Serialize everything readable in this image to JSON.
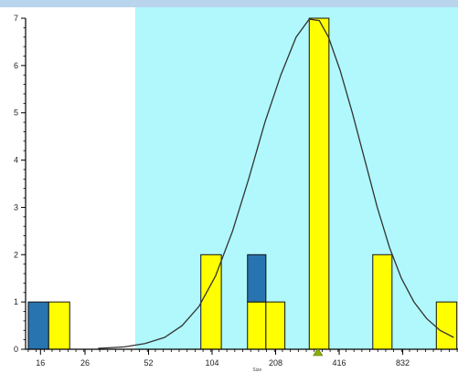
{
  "chart_data": {
    "type": "bar",
    "xlabel": "Size",
    "x_scale": "log2",
    "x_tick_labels": [
      "16",
      "26",
      "52",
      "104",
      "208",
      "416",
      "832"
    ],
    "x_tick_values": [
      16,
      26,
      52,
      104,
      208,
      416,
      832
    ],
    "y_tick_labels": [
      "0",
      "1",
      "2",
      "3",
      "4",
      "5",
      "6",
      "7"
    ],
    "ylim": [
      0,
      7
    ],
    "highlight_range": [
      45,
      1300
    ],
    "bars": [
      {
        "x_from": 14,
        "x_to": 17.5,
        "value": 1,
        "color": "#2874b0"
      },
      {
        "x_from": 17.5,
        "x_to": 22,
        "value": 1,
        "color": "#ffff00"
      },
      {
        "x_from": 92,
        "x_to": 115,
        "value": 2,
        "color": "#ffff00"
      },
      {
        "x_from": 153,
        "x_to": 187,
        "value": 1,
        "color": "#ffff00"
      },
      {
        "x_from": 153,
        "x_to": 187,
        "value": 1,
        "base": 1,
        "color": "#2874b0"
      },
      {
        "x_from": 187,
        "x_to": 230,
        "value": 1,
        "color": "#ffff00"
      },
      {
        "x_from": 300,
        "x_to": 372,
        "value": 7,
        "color": "#ffff00"
      },
      {
        "x_from": 600,
        "x_to": 740,
        "value": 2,
        "color": "#ffff00"
      },
      {
        "x_from": 1200,
        "x_to": 1500,
        "value": 1,
        "color": "#ffff00"
      }
    ],
    "curve": {
      "x": [
        30,
        40,
        50,
        62,
        75,
        90,
        108,
        130,
        155,
        185,
        220,
        260,
        300,
        335,
        370,
        420,
        480,
        550,
        630,
        720,
        820,
        940,
        1080,
        1250,
        1450
      ],
      "y": [
        0.02,
        0.05,
        0.12,
        0.25,
        0.5,
        0.9,
        1.55,
        2.5,
        3.6,
        4.8,
        5.8,
        6.6,
        6.98,
        6.95,
        6.6,
        5.9,
        5.0,
        4.0,
        3.0,
        2.15,
        1.5,
        1.0,
        0.65,
        0.4,
        0.25
      ]
    },
    "marker_x": 330,
    "colors": {
      "highlight": "#b0f8fc",
      "bar_yellow": "#ffff00",
      "bar_blue": "#2874b0",
      "curve": "#333333",
      "marker": "#8db100"
    }
  }
}
